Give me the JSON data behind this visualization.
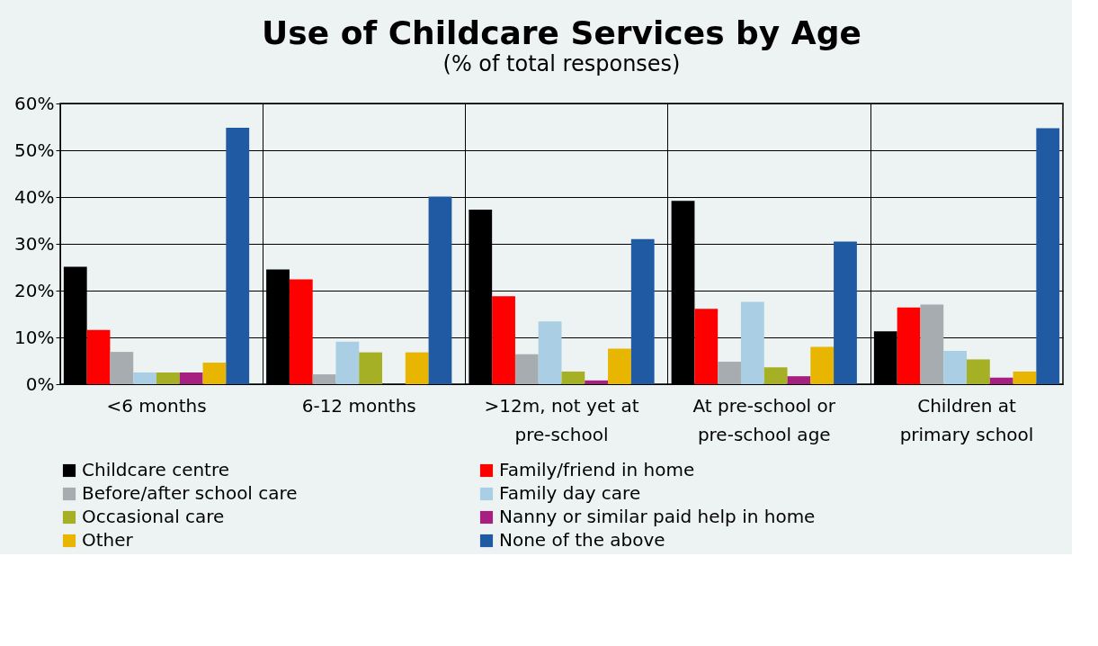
{
  "chart_data": {
    "type": "bar",
    "title": "Use of Childcare Services by Age",
    "subtitle": "(% of total responses)",
    "categories": [
      "<6 months",
      "6-12 months",
      ">12m, not yet at pre-school",
      "At pre-school or pre-school age",
      "Children at primary school"
    ],
    "series": [
      {
        "name": "Childcare centre",
        "color": "#000000",
        "values": [
          25.1,
          24.5,
          37.3,
          39.2,
          11.3
        ]
      },
      {
        "name": "Family/friend in home",
        "color": "#ff0000",
        "values": [
          11.6,
          22.4,
          18.8,
          16.1,
          16.4
        ]
      },
      {
        "name": "Before/after school care",
        "color": "#a6acb0",
        "values": [
          6.9,
          2.1,
          6.4,
          4.8,
          17.0
        ]
      },
      {
        "name": "Family day care",
        "color": "#aacfe5",
        "values": [
          2.5,
          9.1,
          13.4,
          17.6,
          7.1
        ]
      },
      {
        "name": "Occasional care",
        "color": "#a5b024",
        "values": [
          2.5,
          6.8,
          2.7,
          3.6,
          5.3
        ]
      },
      {
        "name": "Nanny or similar paid help in home",
        "color": "#a6217f",
        "values": [
          2.5,
          0,
          0.8,
          1.7,
          1.4
        ]
      },
      {
        "name": "Other",
        "color": "#e8b600",
        "values": [
          4.6,
          6.8,
          7.6,
          8.0,
          2.7
        ]
      },
      {
        "name": "None of the above",
        "color": "#1f5aa3",
        "values": [
          54.8,
          40.1,
          31.0,
          30.5,
          54.7
        ]
      }
    ],
    "ylim": [
      0,
      60
    ],
    "yticks": [
      {
        "value": 0,
        "label": "0%"
      },
      {
        "value": 10,
        "label": "10%"
      },
      {
        "value": 20,
        "label": "20%"
      },
      {
        "value": 30,
        "label": "30%"
      },
      {
        "value": 40,
        "label": "40%"
      },
      {
        "value": 50,
        "label": "50%"
      },
      {
        "value": 60,
        "label": "60%"
      }
    ],
    "grid": true,
    "legend": "bottom"
  }
}
